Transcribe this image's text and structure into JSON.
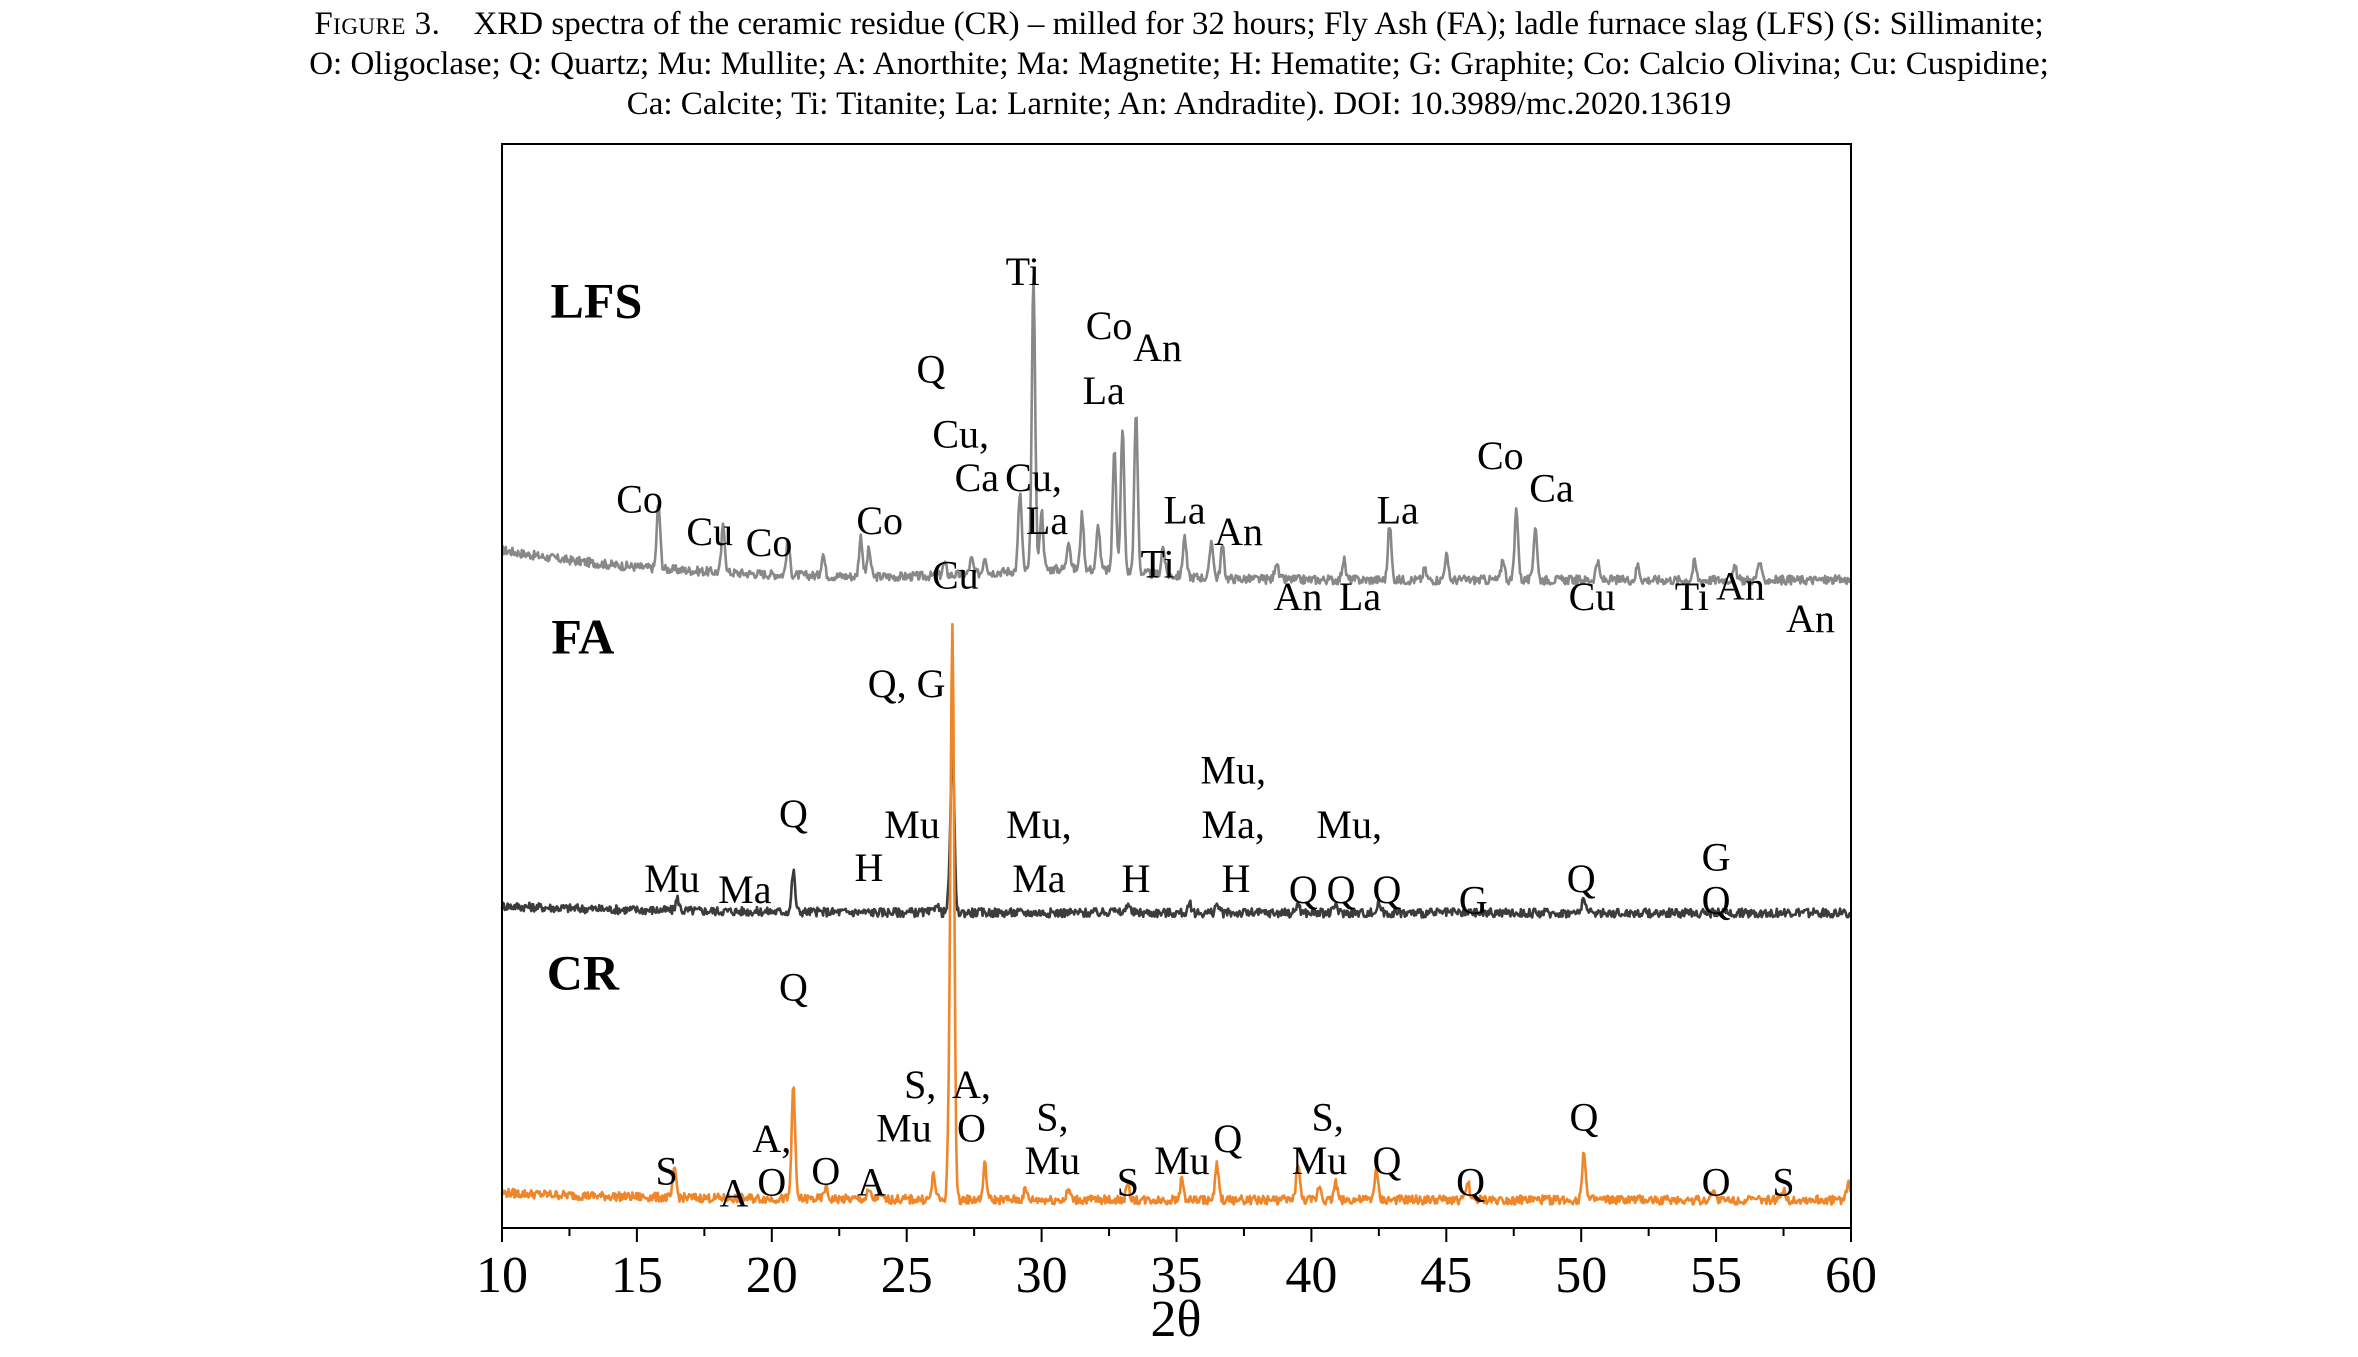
{
  "caption": {
    "prefix": "Figure 3.",
    "line1": "XRD spectra of the ceramic residue (CR) – milled for 32 hours; Fly Ash (FA); ladle furnace slag (LFS) (S: Sillimanite;",
    "line2": "O: Oligoclase; Q: Quartz; Mu: Mullite; A: Anorthite; Ma: Magnetite; H: Hematite; G: Graphite; Co: Calcio Olivina; Cu: Cuspidine;",
    "line3": "Ca: Calcite; Ti: Titanite; La: Larnite; An: Andradite).  DOI: 10.3989/mc.2020.13619"
  },
  "chart_data": {
    "type": "line",
    "xlabel": "2θ",
    "xlim": [
      10,
      60
    ],
    "xticks": [
      10,
      15,
      20,
      25,
      30,
      35,
      40,
      45,
      50,
      55,
      60
    ],
    "yaxis": "stacked intensity, unlabeled",
    "series": [
      {
        "name": "LFS",
        "color": "#888888",
        "baseline": 50,
        "peaks": [
          {
            "x": 15.8,
            "h": 65
          },
          {
            "x": 18.2,
            "h": 47
          },
          {
            "x": 20.6,
            "h": 33
          },
          {
            "x": 21.9,
            "h": 22
          },
          {
            "x": 23.3,
            "h": 40
          },
          {
            "x": 23.6,
            "h": 27
          },
          {
            "x": 26.4,
            "h": 12
          },
          {
            "x": 27.4,
            "h": 15
          },
          {
            "x": 27.9,
            "h": 17
          },
          {
            "x": 29.2,
            "h": 78
          },
          {
            "x": 29.7,
            "h": 290
          },
          {
            "x": 30.0,
            "h": 60
          },
          {
            "x": 31.0,
            "h": 30
          },
          {
            "x": 31.5,
            "h": 55
          },
          {
            "x": 32.1,
            "h": 45
          },
          {
            "x": 32.7,
            "h": 125
          },
          {
            "x": 33.0,
            "h": 145
          },
          {
            "x": 33.5,
            "h": 160
          },
          {
            "x": 34.5,
            "h": 28
          },
          {
            "x": 35.3,
            "h": 40
          },
          {
            "x": 36.3,
            "h": 38
          },
          {
            "x": 36.7,
            "h": 32
          },
          {
            "x": 38.7,
            "h": 18
          },
          {
            "x": 41.2,
            "h": 20
          },
          {
            "x": 42.9,
            "h": 55
          },
          {
            "x": 44.2,
            "h": 10
          },
          {
            "x": 45.0,
            "h": 25
          },
          {
            "x": 47.1,
            "h": 22
          },
          {
            "x": 47.6,
            "h": 72
          },
          {
            "x": 48.3,
            "h": 55
          },
          {
            "x": 50.6,
            "h": 18
          },
          {
            "x": 52.1,
            "h": 15
          },
          {
            "x": 54.2,
            "h": 18
          },
          {
            "x": 55.7,
            "h": 12
          },
          {
            "x": 56.6,
            "h": 18
          }
        ]
      },
      {
        "name": "FA",
        "color": "#3c3c3c",
        "baseline": 12,
        "peaks": [
          {
            "x": 16.5,
            "h": 12
          },
          {
            "x": 20.8,
            "h": 40
          },
          {
            "x": 26.1,
            "h": 10
          },
          {
            "x": 26.6,
            "h": 25
          },
          {
            "x": 26.7,
            "h": 165
          },
          {
            "x": 32.6,
            "h": 7
          },
          {
            "x": 33.2,
            "h": 10
          },
          {
            "x": 35.5,
            "h": 8
          },
          {
            "x": 36.5,
            "h": 9
          },
          {
            "x": 39.5,
            "h": 10
          },
          {
            "x": 40.9,
            "h": 9
          },
          {
            "x": 42.5,
            "h": 10
          },
          {
            "x": 50.1,
            "h": 17
          }
        ]
      },
      {
        "name": "CR",
        "color": "#f0862a",
        "baseline": 12,
        "peaks": [
          {
            "x": 16.4,
            "h": 28
          },
          {
            "x": 20.8,
            "h": 115
          },
          {
            "x": 22.0,
            "h": 12
          },
          {
            "x": 23.6,
            "h": 8
          },
          {
            "x": 24.0,
            "h": 6
          },
          {
            "x": 26.0,
            "h": 25
          },
          {
            "x": 26.6,
            "h": 110
          },
          {
            "x": 26.7,
            "h": 540
          },
          {
            "x": 27.9,
            "h": 35
          },
          {
            "x": 29.4,
            "h": 10
          },
          {
            "x": 31.0,
            "h": 10
          },
          {
            "x": 33.2,
            "h": 15
          },
          {
            "x": 35.2,
            "h": 20
          },
          {
            "x": 36.5,
            "h": 35
          },
          {
            "x": 39.5,
            "h": 38
          },
          {
            "x": 40.3,
            "h": 15
          },
          {
            "x": 40.9,
            "h": 18
          },
          {
            "x": 42.4,
            "h": 30
          },
          {
            "x": 45.8,
            "h": 18
          },
          {
            "x": 50.1,
            "h": 50
          },
          {
            "x": 54.9,
            "h": 12
          },
          {
            "x": 57.5,
            "h": 12
          },
          {
            "x": 59.9,
            "h": 18
          }
        ]
      }
    ],
    "series_labels": [
      {
        "text": "LFS",
        "x": 13.5,
        "level": 0.84
      },
      {
        "text": "FA",
        "x": 13.0,
        "level": 0.53
      },
      {
        "text": "CR",
        "x": 13.0,
        "level": 0.22
      }
    ],
    "peak_labels": [
      {
        "text": "Ti",
        "x": 29.3,
        "level": 0.87
      },
      {
        "text": "Co",
        "x": 32.5,
        "level": 0.82
      },
      {
        "text": "An",
        "x": 34.3,
        "level": 0.8
      },
      {
        "text": "Q",
        "x": 25.9,
        "level": 0.78
      },
      {
        "text": "La",
        "x": 32.3,
        "level": 0.76
      },
      {
        "text": "Cu,",
        "x": 27.0,
        "level": 0.72
      },
      {
        "text": "Ca",
        "x": 27.6,
        "level": 0.68
      },
      {
        "text": "Cu,",
        "x": 29.7,
        "level": 0.68
      },
      {
        "text": "La",
        "x": 30.2,
        "level": 0.64
      },
      {
        "text": "Co",
        "x": 15.1,
        "level": 0.66
      },
      {
        "text": "Cu",
        "x": 17.7,
        "level": 0.63
      },
      {
        "text": "Co",
        "x": 19.9,
        "level": 0.62
      },
      {
        "text": "Co",
        "x": 24.0,
        "level": 0.64
      },
      {
        "text": "Cu",
        "x": 26.8,
        "level": 0.59
      },
      {
        "text": "La",
        "x": 35.3,
        "level": 0.65
      },
      {
        "text": "An",
        "x": 37.3,
        "level": 0.63
      },
      {
        "text": "Ti",
        "x": 34.3,
        "level": 0.6
      },
      {
        "text": "An",
        "x": 39.5,
        "level": 0.57
      },
      {
        "text": "La",
        "x": 41.8,
        "level": 0.57
      },
      {
        "text": "La",
        "x": 43.2,
        "level": 0.65
      },
      {
        "text": "Co",
        "x": 47.0,
        "level": 0.7
      },
      {
        "text": "Ca",
        "x": 48.9,
        "level": 0.67
      },
      {
        "text": "Cu",
        "x": 50.4,
        "level": 0.57
      },
      {
        "text": "Ti",
        "x": 54.1,
        "level": 0.57
      },
      {
        "text": "An",
        "x": 55.9,
        "level": 0.58
      },
      {
        "text": "An",
        "x": 58.5,
        "level": 0.55
      },
      {
        "text": "Q, G",
        "x": 25.0,
        "level": 0.49
      },
      {
        "text": "Q",
        "x": 20.8,
        "level": 0.37
      },
      {
        "text": "Mu",
        "x": 25.2,
        "level": 0.36
      },
      {
        "text": "H",
        "x": 23.6,
        "level": 0.32
      },
      {
        "text": "Mu",
        "x": 16.3,
        "level": 0.31
      },
      {
        "text": "Ma",
        "x": 19.0,
        "level": 0.3
      },
      {
        "text": "Mu,",
        "x": 29.9,
        "level": 0.36
      },
      {
        "text": "Ma",
        "x": 29.9,
        "level": 0.31
      },
      {
        "text": "H",
        "x": 33.5,
        "level": 0.31
      },
      {
        "text": "Mu,",
        "x": 37.1,
        "level": 0.41
      },
      {
        "text": "Ma,",
        "x": 37.1,
        "level": 0.36
      },
      {
        "text": "H",
        "x": 37.2,
        "level": 0.31
      },
      {
        "text": "Mu,",
        "x": 41.4,
        "level": 0.36
      },
      {
        "text": "Q",
        "x": 39.7,
        "level": 0.3
      },
      {
        "text": "Q",
        "x": 41.1,
        "level": 0.3
      },
      {
        "text": "Q",
        "x": 42.8,
        "level": 0.3
      },
      {
        "text": "G",
        "x": 46.0,
        "level": 0.29
      },
      {
        "text": "Q",
        "x": 50.0,
        "level": 0.31
      },
      {
        "text": "G",
        "x": 55.0,
        "level": 0.33
      },
      {
        "text": "Q",
        "x": 55.0,
        "level": 0.29
      },
      {
        "text": "Q",
        "x": 20.8,
        "level": 0.21
      },
      {
        "text": "S,",
        "x": 25.5,
        "level": 0.12
      },
      {
        "text": "A,",
        "x": 27.4,
        "level": 0.12
      },
      {
        "text": "Mu",
        "x": 24.9,
        "level": 0.08
      },
      {
        "text": "O",
        "x": 27.4,
        "level": 0.08
      },
      {
        "text": "A,",
        "x": 20.0,
        "level": 0.07
      },
      {
        "text": "O",
        "x": 20.0,
        "level": 0.03
      },
      {
        "text": "S",
        "x": 16.1,
        "level": 0.04
      },
      {
        "text": "A",
        "x": 18.6,
        "level": 0.02
      },
      {
        "text": "O",
        "x": 22.0,
        "level": 0.04
      },
      {
        "text": "A",
        "x": 23.7,
        "level": 0.03
      },
      {
        "text": "S,",
        "x": 30.4,
        "level": 0.09
      },
      {
        "text": "Mu",
        "x": 30.4,
        "level": 0.05
      },
      {
        "text": "S",
        "x": 33.2,
        "level": 0.03
      },
      {
        "text": "Mu",
        "x": 35.2,
        "level": 0.05
      },
      {
        "text": "Q",
        "x": 36.9,
        "level": 0.07
      },
      {
        "text": "S,",
        "x": 40.6,
        "level": 0.09
      },
      {
        "text": "Mu",
        "x": 40.3,
        "level": 0.05
      },
      {
        "text": "Q",
        "x": 42.8,
        "level": 0.05
      },
      {
        "text": "Q",
        "x": 45.9,
        "level": 0.03
      },
      {
        "text": "Q",
        "x": 50.1,
        "level": 0.09
      },
      {
        "text": "O",
        "x": 55.0,
        "level": 0.03
      },
      {
        "text": "S",
        "x": 57.5,
        "level": 0.03
      }
    ]
  }
}
